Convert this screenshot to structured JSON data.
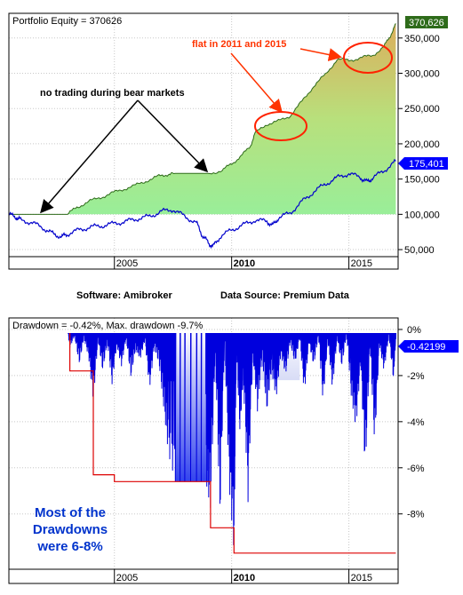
{
  "chart_data": [
    {
      "type": "area",
      "title": "Portfolio Equity = 370626",
      "x_range": [
        2000.5,
        2017.1
      ],
      "ylim": [
        40000,
        385000
      ],
      "y_ticks": [
        {
          "value": 50000,
          "label": "50,000"
        },
        {
          "value": 100000,
          "label": "100,000"
        },
        {
          "value": 150000,
          "label": "150,000"
        },
        {
          "value": 200000,
          "label": "200,000"
        },
        {
          "value": 250000,
          "label": "250,000"
        },
        {
          "value": 300000,
          "label": "300,000"
        },
        {
          "value": 350000,
          "label": "350,000"
        }
      ],
      "x_ticks": [
        {
          "value": 2005,
          "label": "2005",
          "bold": false
        },
        {
          "value": 2010,
          "label": "2010",
          "bold": true
        },
        {
          "value": 2015,
          "label": "2015",
          "bold": false
        }
      ],
      "grid": true,
      "series": [
        {
          "values_label": "370,626",
          "color": "#2e6b1a",
          "x": [
            2003.0,
            2003.4,
            2003.9,
            2004.4,
            2004.9,
            2005.4,
            2005.9,
            2006.4,
            2006.9,
            2007.3,
            2007.6,
            2008.0,
            2009.0,
            2009.6,
            2010.0,
            2010.4,
            2010.8,
            2011.0,
            2011.5,
            2012.0,
            2012.5,
            2013.0,
            2013.5,
            2014.0,
            2014.5,
            2015.0,
            2015.5,
            2016.0,
            2016.5,
            2016.75,
            2017.0
          ],
          "y": [
            100000,
            110000,
            118000,
            124000,
            130000,
            136000,
            141000,
            148000,
            154000,
            157000,
            158000,
            158000,
            158000,
            162000,
            172000,
            182000,
            197000,
            215000,
            228000,
            232000,
            240000,
            260000,
            282000,
            298000,
            320000,
            318000,
            322000,
            325000,
            338000,
            352000,
            370626
          ]
        },
        {
          "values_label": "175,401",
          "color": "#0000cc",
          "x": [
            2000.5,
            2000.8,
            2001.0,
            2001.5,
            2002.0,
            2002.4,
            2002.75,
            2003.0,
            2003.5,
            2004.0,
            2004.5,
            2005.0,
            2005.5,
            2006.0,
            2006.5,
            2007.0,
            2007.5,
            2008.0,
            2008.5,
            2008.75,
            2009.0,
            2009.2,
            2009.5,
            2010.0,
            2010.5,
            2011.0,
            2011.5,
            2011.75,
            2012.0,
            2012.5,
            2013.0,
            2013.5,
            2014.0,
            2014.5,
            2015.0,
            2015.5,
            2015.75,
            2016.0,
            2016.5,
            2017.0
          ],
          "y": [
            100000,
            96000,
            92000,
            88000,
            80000,
            72000,
            68000,
            72000,
            78000,
            82000,
            84000,
            87000,
            90000,
            94000,
            97000,
            104000,
            107000,
            97000,
            88000,
            70000,
            60000,
            54000,
            68000,
            78000,
            85000,
            92000,
            90000,
            84000,
            95000,
            102000,
            118000,
            132000,
            143000,
            152000,
            158000,
            152000,
            146000,
            151000,
            162000,
            175401
          ]
        }
      ],
      "annotations": [
        {
          "text": "flat in 2011 and 2015",
          "color": "#ff3300"
        },
        {
          "text": "no trading during bear markets",
          "color": "#000000"
        }
      ]
    },
    {
      "type": "area",
      "title": "Drawdown = -0.42%, Max. drawdown -9.7%",
      "x_range": [
        2000.5,
        2017.1
      ],
      "ylim": [
        -10.4,
        0.5
      ],
      "y_ticks": [
        {
          "value": 0,
          "label": "0%"
        },
        {
          "value": -2,
          "label": "-2%"
        },
        {
          "value": -4,
          "label": "-4%"
        },
        {
          "value": -6,
          "label": "-6%"
        },
        {
          "value": -8,
          "label": "-8%"
        }
      ],
      "x_ticks": [
        {
          "value": 2005,
          "label": "2005",
          "bold": false
        },
        {
          "value": 2010,
          "label": "2010",
          "bold": true
        },
        {
          "value": 2015,
          "label": "2015",
          "bold": false
        }
      ],
      "grid": true,
      "last_value_label": "-0.42199",
      "series": [
        {
          "name": "drawdown",
          "color": "#0000dd",
          "x": [
            2000.5,
            2003.0,
            2003.1,
            2003.3,
            2003.5,
            2003.7,
            2003.9,
            2004.1,
            2004.3,
            2004.5,
            2004.7,
            2004.9,
            2005.1,
            2005.3,
            2005.5,
            2005.7,
            2005.9,
            2006.1,
            2006.3,
            2006.5,
            2006.7,
            2006.9,
            2007.1,
            2007.3,
            2007.6,
            2008.0,
            2008.5,
            2008.9,
            2009.1,
            2009.3,
            2009.5,
            2009.7,
            2009.9,
            2010.1,
            2010.2,
            2010.35,
            2010.5,
            2010.7,
            2010.9,
            2011.1,
            2011.3,
            2011.5,
            2011.7,
            2011.9,
            2012.1,
            2012.3,
            2012.5,
            2012.7,
            2012.9,
            2013.1,
            2013.3,
            2013.5,
            2013.7,
            2013.9,
            2014.1,
            2014.3,
            2014.5,
            2014.7,
            2014.9,
            2015.1,
            2015.3,
            2015.5,
            2015.7,
            2015.9,
            2016.1,
            2016.3,
            2016.5,
            2016.7,
            2016.9,
            2017.0
          ],
          "y": [
            0,
            0,
            -0.8,
            -0.3,
            -1.5,
            -0.4,
            -1.2,
            -3.1,
            -0.5,
            -1.8,
            -0.6,
            -2.4,
            -0.7,
            -1.6,
            -0.4,
            -2.1,
            -0.9,
            -1.3,
            -0.5,
            -2.6,
            -0.8,
            -1.5,
            -3.4,
            -5.4,
            -6.6,
            -6.6,
            -6.6,
            -6.6,
            -7.9,
            -1.0,
            -8.3,
            -0.6,
            -6.9,
            -9.7,
            -0.8,
            -4.5,
            -2.2,
            -7.5,
            -1.1,
            -3.6,
            -1.2,
            -3.6,
            -1.8,
            -3.0,
            -1.1,
            -2.0,
            -0.6,
            -1.5,
            -0.4,
            -2.8,
            -0.6,
            -1.6,
            -0.3,
            -3.2,
            -0.5,
            -2.6,
            -0.4,
            -1.6,
            -0.2,
            -2.9,
            -4.3,
            -1.6,
            -6.3,
            -0.8,
            -5.1,
            -0.7,
            -1.8,
            -0.3,
            -2.2,
            -0.42
          ]
        },
        {
          "name": "max drawdown",
          "color": "#dd0000",
          "x": [
            2000.5,
            2003.1,
            2003.1,
            2004.1,
            2004.1,
            2005.0,
            2005.0,
            2006.5,
            2006.5,
            2007.6,
            2007.6,
            2009.1,
            2009.1,
            2010.1,
            2010.1,
            2017.0
          ],
          "y": [
            0,
            0,
            -1.8,
            -1.8,
            -6.3,
            -6.3,
            -6.6,
            -6.6,
            -6.6,
            -6.6,
            -6.6,
            -6.6,
            -8.6,
            -8.6,
            -9.7,
            -9.7
          ]
        }
      ],
      "annotations": [
        {
          "text": "Most of the Drawdowns were 6-8%",
          "color": "#0033cc"
        }
      ]
    }
  ],
  "caption": {
    "software": "Software: Amibroker",
    "source": "Data Source: Premium Data"
  },
  "annotation_texts": {
    "flat": "flat in 2011 and 2015",
    "bear": "no trading during bear markets",
    "dd_line1": "Most of the",
    "dd_line2": "Drawdowns",
    "dd_line3": "were 6-8%"
  },
  "colors": {
    "equity_fill_low": "#99ee99",
    "equity_fill_high": "#d9b060",
    "equity_line": "#2e6b1a",
    "benchmark_line": "#0000cc",
    "equity_badge": "#2e6b1a",
    "benchmark_badge": "#0000ff",
    "drawdown_fill": "#0000dd",
    "maxdd_line": "#dd0000",
    "annotation_red": "#ff3300",
    "annotation_blue": "#0033cc"
  }
}
